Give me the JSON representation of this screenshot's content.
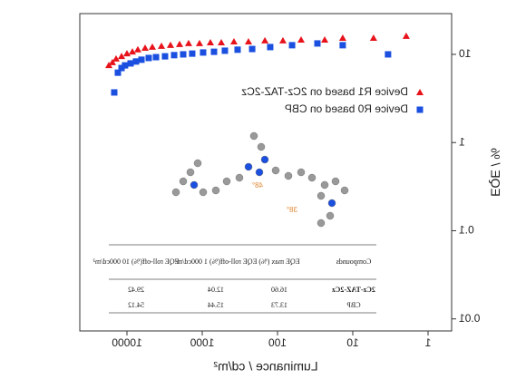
{
  "chart_data": {
    "type": "scatter",
    "xlabel": "Luminance / cd/m²",
    "ylabel": "EQE / %",
    "xscale": "log",
    "yscale": "log",
    "xlim": [
      0.486,
      42300
    ],
    "ylim": [
      0.0073,
      29
    ],
    "xticks": [
      1,
      10,
      100,
      1000,
      10000
    ],
    "yticks": [
      0.01,
      0.1,
      1,
      10
    ],
    "mirrored": true,
    "legend": "upper left",
    "series": [
      {
        "name": "Device R1 based on 2Cz-TAZ-2Cz",
        "color": "#e8121b",
        "marker": "triangle",
        "x": [
          1.95,
          5.3,
          13.6,
          23.6,
          48.6,
          84.7,
          147,
          243,
          379,
          558,
          779,
          1087,
          1517,
          2000,
          2640,
          3480,
          4600,
          5740,
          7170,
          8470,
          10000,
          11800,
          13950,
          15600,
          17400
        ],
        "values": [
          16.1,
          15.3,
          15.3,
          14.6,
          14.6,
          14.3,
          14.3,
          13.9,
          13.9,
          13.6,
          13.6,
          13.3,
          13.3,
          13.0,
          12.7,
          12.4,
          12.1,
          11.8,
          11.3,
          10.7,
          10.2,
          9.5,
          8.9,
          8.1,
          7.5
        ]
      },
      {
        "name": "Device R0 based on CBP",
        "color": "#1a4fe0",
        "marker": "square",
        "x": [
          3.4,
          13.6,
          29.5,
          64,
          125,
          217,
          339,
          500,
          697,
          973,
          1358,
          1790,
          2360,
          3120,
          4110,
          5140,
          6410,
          7580,
          8950,
          10600,
          11800,
          13200,
          14750
        ],
        "values": [
          10.0,
          12.7,
          13.3,
          12.7,
          12.1,
          11.5,
          11.3,
          11.0,
          10.7,
          10.5,
          10.2,
          10.0,
          9.8,
          9.5,
          9.3,
          9.1,
          8.7,
          8.3,
          7.9,
          7.5,
          7.0,
          6.2,
          3.7
        ]
      }
    ],
    "annotations": [
      "48°",
      "38°"
    ],
    "table": {
      "headers": [
        "Compounds",
        "EQE max (%)",
        "EQE roll-off(%) 1 000cd/m²",
        "EQE roll-off(%) 10 000cd/m²"
      ],
      "rows": [
        [
          "2Cz-TAZ-2Cz",
          "16.60",
          "12.04",
          "29.42"
        ],
        [
          "CBP",
          "13.73",
          "15.44",
          "54.12"
        ]
      ]
    }
  }
}
